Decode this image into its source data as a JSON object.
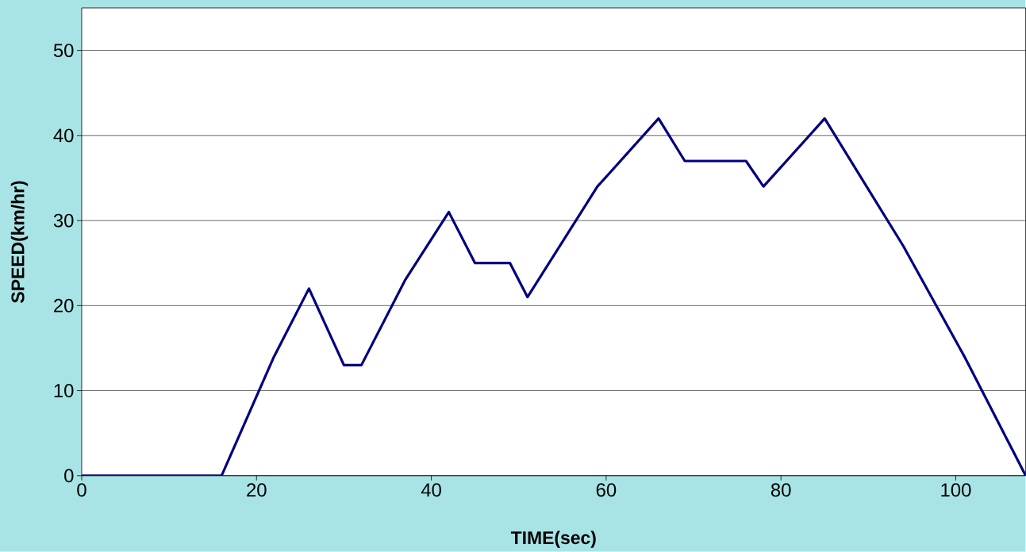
{
  "chart_data": {
    "type": "line",
    "xlabel": "TIME(sec)",
    "ylabel": "SPEED(km/hr)",
    "x": [
      0,
      16,
      22,
      26,
      30,
      32,
      37,
      42,
      45,
      49,
      51,
      59,
      66,
      69,
      76,
      78,
      85,
      94,
      101,
      108
    ],
    "series": [
      {
        "color": "#000080",
        "values": [
          0,
          0,
          14,
          22,
          13,
          13,
          23,
          31,
          25,
          25,
          21,
          34,
          42,
          37,
          37,
          34,
          42,
          27,
          14,
          0
        ]
      }
    ],
    "xlim": [
      0,
      108
    ],
    "ylim": [
      0,
      55
    ],
    "xticks": [
      0,
      20,
      40,
      60,
      80,
      100
    ],
    "yticks": [
      0,
      10,
      20,
      30,
      40,
      50
    ],
    "grid": "y",
    "marker": "none",
    "line_style": "solid"
  }
}
